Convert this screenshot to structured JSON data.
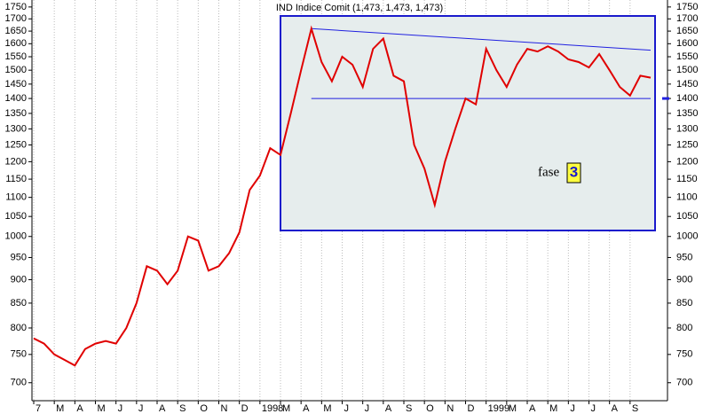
{
  "chart_data": {
    "type": "line",
    "title": "IND Indice Comit (1,473, 1,473, 1,473)",
    "annotation": "fase",
    "phase": "3",
    "log_scale": true,
    "grid": true,
    "categories": [
      "7",
      null,
      "M",
      null,
      "A",
      null,
      "M",
      null,
      "J",
      null,
      "J",
      null,
      "A",
      null,
      "S",
      null,
      "O",
      null,
      "N",
      null,
      "D",
      null,
      "1998",
      null,
      "M",
      null,
      "A",
      null,
      "M",
      null,
      "J",
      null,
      "J",
      null,
      "A",
      null,
      "S",
      null,
      "O",
      null,
      "N",
      null,
      "D",
      null,
      "1999",
      null,
      "M",
      null,
      "A",
      null,
      "M",
      null,
      "J",
      null,
      "J",
      null,
      "A",
      null,
      "S",
      null,
      null
    ],
    "series": [
      {
        "name": "IND Indice Comit",
        "color": "#e00000",
        "values": [
          780,
          770,
          750,
          740,
          730,
          760,
          770,
          775,
          770,
          800,
          850,
          930,
          920,
          890,
          920,
          1000,
          990,
          920,
          930,
          960,
          1010,
          1120,
          1160,
          1240,
          1220,
          1350,
          1500,
          1660,
          1530,
          1460,
          1550,
          1520,
          1440,
          1580,
          1620,
          1480,
          1460,
          1250,
          1180,
          1080,
          1200,
          1300,
          1400,
          1380,
          1580,
          1500,
          1440,
          1520,
          1580,
          1570,
          1590,
          1570,
          1540,
          1530,
          1510,
          1560,
          1500,
          1440,
          1410,
          1480,
          1473
        ]
      }
    ],
    "support": 1400,
    "resistance": [
      1660,
      1575
    ],
    "ylim": [
      670,
      1780
    ],
    "yticks": [
      700,
      750,
      800,
      850,
      900,
      950,
      1000,
      1050,
      1100,
      1150,
      1200,
      1250,
      1300,
      1350,
      1400,
      1450,
      1500,
      1550,
      1600,
      1650,
      1700,
      1750
    ]
  }
}
